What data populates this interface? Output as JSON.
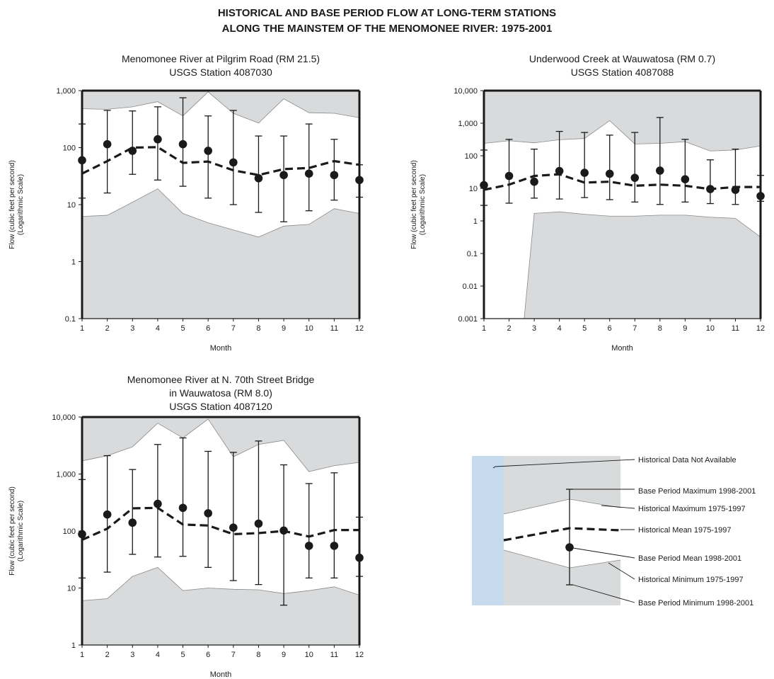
{
  "figure": {
    "title_line1": "HISTORICAL AND BASE PERIOD FLOW AT LONG-TERM STATIONS",
    "title_line2": "ALONG THE MAINSTEM OF THE MENOMONEE RIVER: 1975-2001"
  },
  "colors": {
    "shade": "#d9dadb",
    "not_available": "#c6dcee",
    "line": "#1a1a1a",
    "envelope": "#8a8a8a"
  },
  "chart_data": [
    {
      "type": "area",
      "title_line1": "Menomonee River at Pilgrim Road (RM 21.5)",
      "title_line2": "USGS Station 4087030",
      "xlabel": "Month",
      "ylabel_line1": "Flow (cubic feet per second)",
      "ylabel_line2": "(Logarithmic Scale)",
      "yscale": "log",
      "ylim": [
        0.1,
        1000
      ],
      "yticks": [
        0.1,
        1,
        10,
        100,
        1000
      ],
      "ytick_labels": [
        "0.1",
        "1",
        "10",
        "100",
        "1,000"
      ],
      "x": [
        1,
        2,
        3,
        4,
        5,
        6,
        7,
        8,
        9,
        10,
        11,
        12
      ],
      "historical_max": [
        480,
        470,
        520,
        640,
        360,
        950,
        400,
        270,
        720,
        410,
        400,
        335
      ],
      "historical_mean": [
        35,
        58,
        100,
        102,
        54,
        57,
        40,
        33,
        42,
        44,
        58,
        50
      ],
      "historical_min": [
        6.2,
        6.5,
        11,
        19,
        7,
        4.8,
        3.6,
        2.7,
        4.2,
        4.5,
        8.5,
        7
      ],
      "base_mean": [
        60,
        115,
        88,
        140,
        115,
        88,
        55,
        29,
        33,
        35,
        33,
        27
      ],
      "base_max": [
        260,
        450,
        440,
        520,
        750,
        360,
        450,
        160,
        160,
        260,
        140,
        50
      ],
      "base_min": [
        13,
        16,
        34,
        27,
        21,
        13,
        10,
        7.3,
        5,
        7.8,
        12,
        13.5
      ]
    },
    {
      "type": "area",
      "title_line1": "Underwood Creek at Wauwatosa (RM 0.7)",
      "title_line2": "USGS Station 4087088",
      "xlabel": "Month",
      "ylabel_line1": "Flow (cubic feet per second)",
      "ylabel_line2": "(Logarithmic Scale)",
      "yscale": "log",
      "ylim": [
        0.001,
        10000
      ],
      "yticks": [
        0.001,
        0.01,
        0.1,
        1,
        10,
        100,
        1000,
        10000
      ],
      "ytick_labels": [
        "0.001",
        "0.01",
        "0.1",
        "1",
        "10",
        "100",
        "1,000",
        "10,000"
      ],
      "x": [
        1,
        2,
        3,
        4,
        5,
        6,
        7,
        8,
        9,
        10,
        11,
        12
      ],
      "historical_max": [
        240,
        290,
        250,
        310,
        340,
        1200,
        230,
        240,
        270,
        140,
        150,
        200
      ],
      "historical_mean": [
        9,
        13,
        24,
        27,
        15,
        16,
        12,
        13,
        12,
        9.5,
        11,
        11
      ],
      "historical_min_x": [
        2.6,
        3,
        4,
        5,
        6,
        7,
        8,
        9,
        10,
        11,
        12
      ],
      "historical_min": [
        0.001,
        1.7,
        1.9,
        1.6,
        1.4,
        1.4,
        1.5,
        1.5,
        1.3,
        1.2,
        0.32
      ],
      "base_mean": [
        12.5,
        24,
        16,
        34,
        30,
        28,
        21,
        35,
        19,
        9.5,
        9,
        5.8
      ],
      "base_max": [
        150,
        320,
        160,
        560,
        520,
        430,
        520,
        1500,
        320,
        75,
        160,
        25
      ],
      "base_min": [
        3,
        3.5,
        5,
        4.7,
        5.2,
        4.5,
        3.8,
        3.2,
        3.8,
        3.4,
        3.2,
        4
      ]
    },
    {
      "type": "area",
      "title_line1": "Menomonee River at N. 70th Street Bridge",
      "title_line2": "in Wauwatosa (RM 8.0)",
      "title_line3": "USGS Station 4087120",
      "xlabel": "Month",
      "ylabel_line1": "Flow (cubic feet per second)",
      "ylabel_line2": "(Logarithmic Scale)",
      "yscale": "log",
      "ylim": [
        1,
        10000
      ],
      "yticks": [
        1,
        10,
        100,
        1000,
        10000
      ],
      "ytick_labels": [
        "1",
        "10",
        "100",
        "1,000",
        "10,000"
      ],
      "x": [
        1,
        2,
        3,
        4,
        5,
        6,
        7,
        8,
        9,
        10,
        11,
        12
      ],
      "historical_max": [
        1700,
        2100,
        3000,
        7800,
        4300,
        9200,
        2000,
        3300,
        3900,
        1100,
        1400,
        1600
      ],
      "historical_mean": [
        70,
        110,
        250,
        255,
        130,
        125,
        88,
        92,
        100,
        80,
        104,
        104
      ],
      "historical_min": [
        6,
        6.5,
        16,
        23,
        9,
        10,
        9.5,
        9.3,
        8,
        9,
        10.5,
        7.5
      ],
      "base_mean": [
        88,
        195,
        140,
        300,
        255,
        205,
        115,
        135,
        102,
        55,
        55,
        34
      ],
      "base_max": [
        800,
        2100,
        1200,
        3300,
        4300,
        2500,
        2400,
        3800,
        1450,
        680,
        1050,
        175
      ],
      "base_min": [
        15,
        19,
        39,
        35,
        36,
        23,
        13.5,
        11.5,
        5,
        15,
        15,
        16
      ]
    }
  ],
  "legend": {
    "not_available": "Historical Data Not Available",
    "base_max": "Base Period Maximum 1998-2001",
    "hist_max": "Historical Maximum 1975-1997",
    "hist_mean": "Historical Mean 1975-1997",
    "base_mean": "Base Period Mean 1998-2001",
    "hist_min": "Historical Minimum 1975-1997",
    "base_min": "Base Period Minimum 1998-2001"
  }
}
